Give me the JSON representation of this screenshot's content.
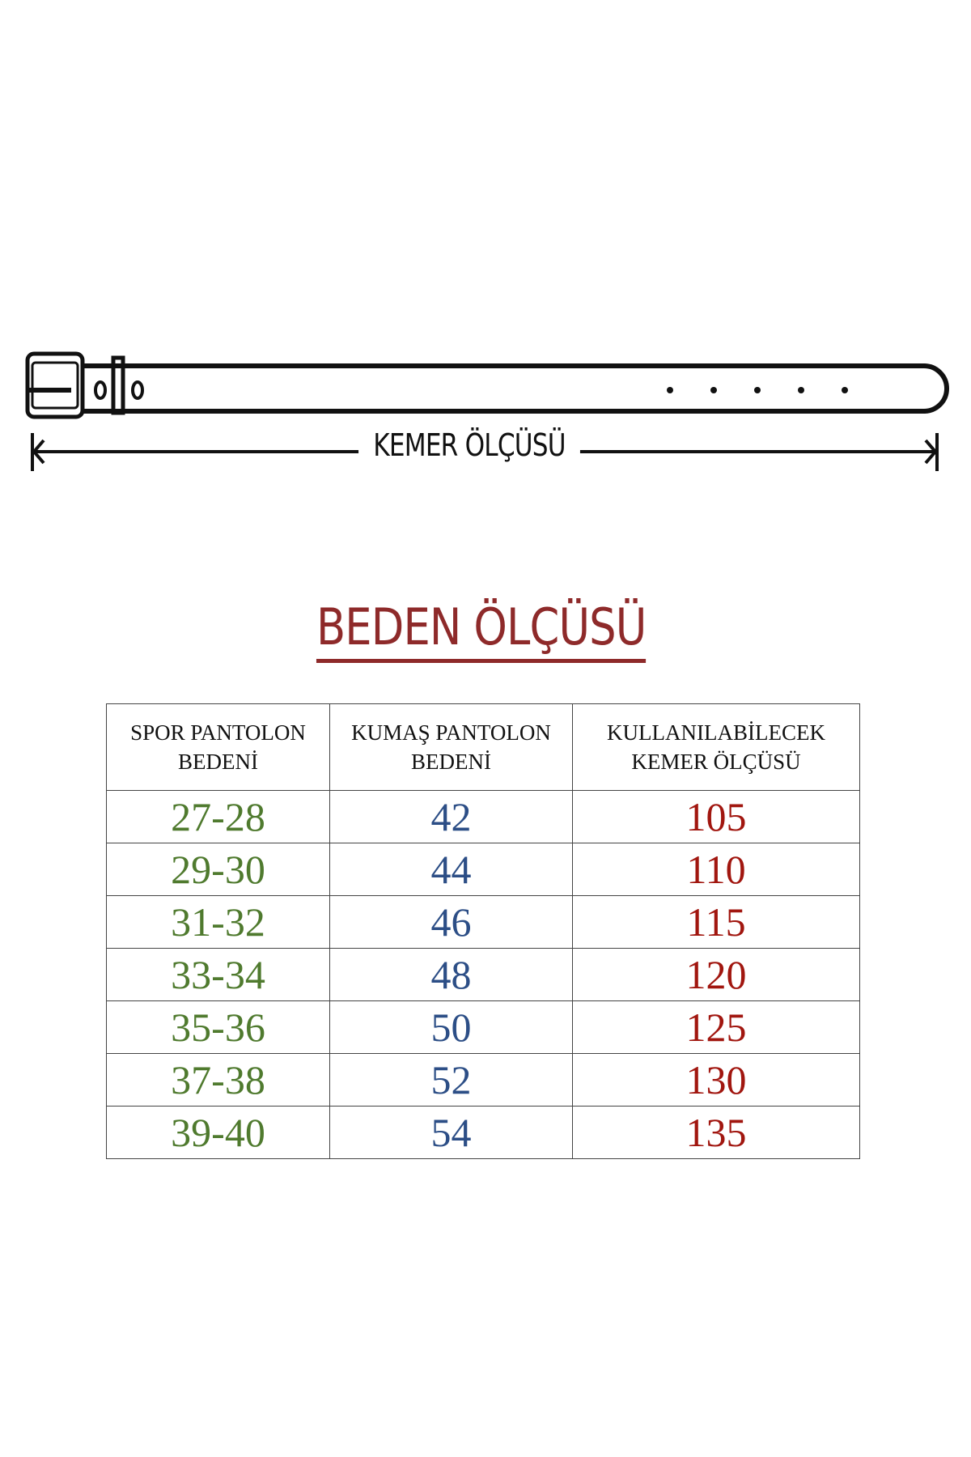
{
  "belt_diagram": {
    "label": "KEMER ÖLÇÜSÜ"
  },
  "title": "BEDEN ÖLÇÜSÜ",
  "table": {
    "headers": [
      [
        "SPOR PANTOLON",
        "BEDENİ"
      ],
      [
        "KUMAŞ PANTOLON",
        "BEDENİ"
      ],
      [
        "KULLANILABİLECEK",
        "KEMER ÖLÇÜSÜ"
      ]
    ],
    "rows": [
      [
        "27-28",
        "42",
        "105"
      ],
      [
        "29-30",
        "44",
        "110"
      ],
      [
        "31-32",
        "46",
        "115"
      ],
      [
        "33-34",
        "48",
        "120"
      ],
      [
        "35-36",
        "50",
        "125"
      ],
      [
        "37-38",
        "52",
        "130"
      ],
      [
        "39-40",
        "54",
        "135"
      ]
    ]
  },
  "colors": {
    "title": "#8e2a2a",
    "col1": "#4f7a2e",
    "col2": "#2c4e86",
    "col3": "#a1160f"
  }
}
